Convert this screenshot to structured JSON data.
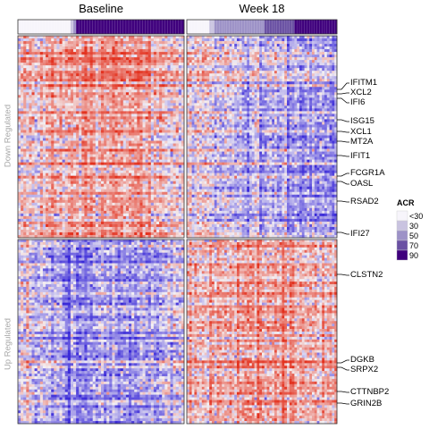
{
  "chart_data": {
    "type": "heatmap",
    "columns": [
      {
        "title": "Baseline",
        "n_samples": 60
      },
      {
        "title": "Week 18",
        "n_samples": 60
      }
    ],
    "rows": [
      {
        "title": "Down Regulated",
        "n_genes": 75
      },
      {
        "title": "Up Regulated",
        "n_genes": 70
      }
    ],
    "acr_annotation": {
      "Baseline": [
        0,
        0,
        0,
        0,
        0,
        0,
        0,
        0,
        0,
        0,
        0,
        0,
        0,
        0,
        0,
        0,
        0,
        0,
        0,
        30,
        50,
        90,
        90,
        90,
        90,
        90,
        90,
        90,
        90,
        90,
        90,
        90,
        90,
        90,
        90,
        90,
        90,
        90,
        90,
        90,
        90,
        90,
        90,
        90,
        90,
        90,
        90,
        90,
        90,
        90,
        90,
        90,
        90,
        90,
        90,
        90,
        90,
        90,
        90,
        90
      ],
      "Week 18": [
        0,
        0,
        0,
        0,
        0,
        0,
        0,
        0,
        0,
        30,
        30,
        50,
        50,
        50,
        50,
        50,
        50,
        50,
        50,
        50,
        50,
        50,
        50,
        50,
        50,
        50,
        50,
        50,
        50,
        50,
        50,
        70,
        70,
        70,
        70,
        70,
        70,
        70,
        70,
        70,
        70,
        70,
        70,
        90,
        90,
        90,
        90,
        90,
        90,
        90,
        90,
        90,
        90,
        90,
        90,
        90,
        90,
        90,
        90,
        90
      ]
    },
    "gene_labels": {
      "Down Regulated": [
        "IFITM1",
        "XCL2",
        "IFI6",
        "ISG15",
        "XCL1",
        "MT2A",
        "IFIT1",
        "FCGR1A",
        "OASL",
        "RSAD2",
        "IFI27"
      ],
      "Up Regulated": [
        "CLSTN2",
        "DGKB",
        "SRPX2",
        "CTTNBP2",
        "GRIN2B"
      ]
    },
    "legend": {
      "title": "ACR",
      "entries": [
        {
          "label": "<30",
          "color": "#f7f5fb"
        },
        {
          "label": "30",
          "color": "#c9c3e0"
        },
        {
          "label": "50",
          "color": "#9d92c7"
        },
        {
          "label": "70",
          "color": "#6a51a3"
        },
        {
          "label": "90",
          "color": "#3f007d"
        }
      ]
    },
    "color_scale": {
      "low": "#3a2ad8",
      "mid": "#f4f1f4",
      "high": "#e3321f"
    },
    "row_axis_color": "#a6a6a6"
  }
}
